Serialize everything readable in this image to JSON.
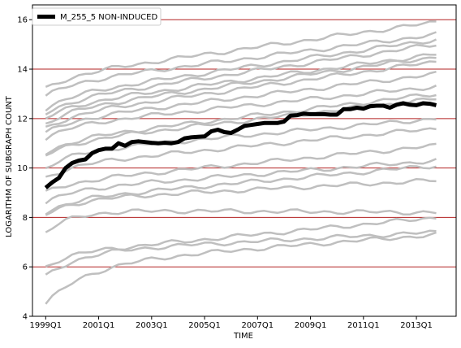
{
  "chart_data": {
    "type": "line",
    "xlabel": "TIME",
    "ylabel": "LOGARITHM OF SUBGRAPH COUNT",
    "x_ticks": [
      "1999Q1",
      "2001Q1",
      "2003Q1",
      "2005Q1",
      "2007Q1",
      "2009Q1",
      "2011Q1",
      "2013Q1"
    ],
    "y_ticks": [
      4,
      6,
      8,
      10,
      12,
      14,
      16
    ],
    "xlim": [
      "1998Q3",
      "2014Q3"
    ],
    "ylim": [
      4,
      16.6
    ],
    "grid": {
      "horizontal": true,
      "vertical": false,
      "color": "#b22222"
    },
    "legend": {
      "position": "top-left",
      "entries": [
        "M_255_5 NON-INDUCED"
      ]
    },
    "colors": {
      "highlight": "#000000",
      "background_series": "#bfbfbf",
      "grid": "#b22222"
    },
    "highlight_series": {
      "name": "M_255_5 NON-INDUCED",
      "values": [
        9.2,
        9.42,
        9.6,
        10.0,
        10.2,
        10.3,
        10.35,
        10.6,
        10.72,
        10.78,
        10.78,
        11.0,
        10.9,
        11.05,
        11.08,
        11.05,
        11.02,
        11.0,
        11.02,
        11.0,
        11.05,
        11.2,
        11.24,
        11.26,
        11.28,
        11.48,
        11.55,
        11.45,
        11.42,
        11.55,
        11.7,
        11.74,
        11.78,
        11.82,
        11.82,
        11.82,
        11.88,
        12.12,
        12.14,
        12.2,
        12.18,
        12.18,
        12.18,
        12.16,
        12.16,
        12.38,
        12.38,
        12.44,
        12.4,
        12.5,
        12.52,
        12.52,
        12.44,
        12.56,
        12.62,
        12.56,
        12.54,
        12.62,
        12.6,
        12.54
      ]
    },
    "background_series": [
      {
        "start": 4.5,
        "end": 7.3,
        "ramp": 1.6,
        "k": 0.08
      },
      {
        "start": 5.6,
        "end": 7.4,
        "ramp": 1.0,
        "k": 0.1
      },
      {
        "start": 6.0,
        "end": 8.0,
        "ramp": 0.5,
        "k": 0.15
      },
      {
        "start": 7.4,
        "end": 8.2,
        "ramp": 0.9,
        "k": 0.12
      },
      {
        "start": 8.1,
        "end": 9.5,
        "ramp": 0.6,
        "k": 0.12
      },
      {
        "start": 8.2,
        "end": 10.1,
        "ramp": 0.5,
        "k": 0.12
      },
      {
        "start": 8.6,
        "end": 10.3,
        "ramp": 0.5,
        "k": 0.12
      },
      {
        "start": 9.0,
        "end": 10.9,
        "ramp": 0.4,
        "k": 0.12
      },
      {
        "start": 9.6,
        "end": 11.6,
        "ramp": 0.5,
        "k": 0.12
      },
      {
        "start": 10.0,
        "end": 12.0,
        "ramp": 0.6,
        "k": 0.12
      },
      {
        "start": 10.5,
        "end": 12.8,
        "ramp": 0.5,
        "k": 0.12
      },
      {
        "start": 10.6,
        "end": 13.0,
        "ramp": 0.5,
        "k": 0.12
      },
      {
        "start": 11.2,
        "end": 13.3,
        "ramp": 0.5,
        "k": 0.12
      },
      {
        "start": 11.4,
        "end": 13.8,
        "ramp": 0.5,
        "k": 0.12
      },
      {
        "start": 11.6,
        "end": 14.3,
        "ramp": 0.5,
        "k": 0.12
      },
      {
        "start": 11.8,
        "end": 14.5,
        "ramp": 0.5,
        "k": 0.12
      },
      {
        "start": 12.0,
        "end": 14.6,
        "ramp": 0.5,
        "k": 0.12
      },
      {
        "start": 12.2,
        "end": 15.0,
        "ramp": 0.5,
        "k": 0.12
      },
      {
        "start": 12.4,
        "end": 15.2,
        "ramp": 0.5,
        "k": 0.12
      },
      {
        "start": 12.9,
        "end": 15.4,
        "ramp": 0.5,
        "k": 0.12
      },
      {
        "start": 13.2,
        "end": 15.9,
        "ramp": 0.5,
        "k": 0.12
      }
    ]
  }
}
